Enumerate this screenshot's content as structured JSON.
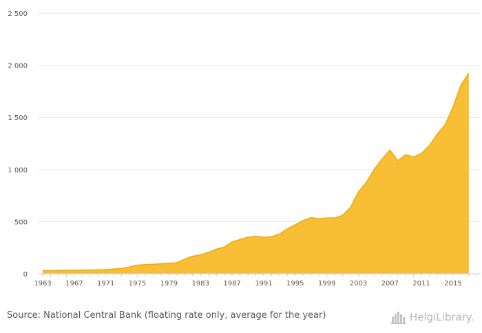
{
  "chart_data": {
    "type": "area",
    "x": [
      1963,
      1964,
      1965,
      1966,
      1967,
      1968,
      1969,
      1970,
      1971,
      1972,
      1973,
      1974,
      1975,
      1976,
      1977,
      1978,
      1979,
      1980,
      1981,
      1982,
      1983,
      1984,
      1985,
      1986,
      1987,
      1988,
      1989,
      1990,
      1991,
      1992,
      1993,
      1994,
      1995,
      1996,
      1997,
      1998,
      1999,
      2000,
      2001,
      2002,
      2003,
      2004,
      2005,
      2006,
      2007,
      2008,
      2009,
      2010,
      2011,
      2012,
      2013,
      2014,
      2015,
      2016,
      2017
    ],
    "values": [
      29,
      30,
      31,
      33,
      34,
      35,
      36,
      37,
      40,
      44,
      50,
      65,
      82,
      87,
      91,
      95,
      100,
      105,
      140,
      168,
      180,
      205,
      235,
      255,
      305,
      328,
      350,
      360,
      350,
      355,
      380,
      430,
      470,
      510,
      538,
      528,
      535,
      535,
      560,
      635,
      785,
      875,
      1000,
      1100,
      1185,
      1085,
      1140,
      1120,
      1155,
      1230,
      1340,
      1430,
      1600,
      1810,
      1925
    ],
    "xticks": [
      "1963",
      "1967",
      "1971",
      "1975",
      "1979",
      "1983",
      "1987",
      "1991",
      "1995",
      "1999",
      "2003",
      "2007",
      "2011",
      "2015"
    ],
    "yticks": [
      0,
      500,
      1000,
      1500,
      2000,
      2500
    ],
    "ytick_labels": [
      "0",
      "500",
      "1 000",
      "1 500",
      "2 000",
      "2 500"
    ],
    "ylim": [
      0,
      2500
    ],
    "xlim": [
      1962,
      2018
    ],
    "grid": true,
    "color": "#f8bb2a",
    "line_color": "#f2a900",
    "title": "",
    "xlabel": "",
    "ylabel": ""
  },
  "footer": {
    "source": "Source: National Central Bank (floating rate only, average for the year)",
    "logo_text": "HelgiLibrary."
  }
}
